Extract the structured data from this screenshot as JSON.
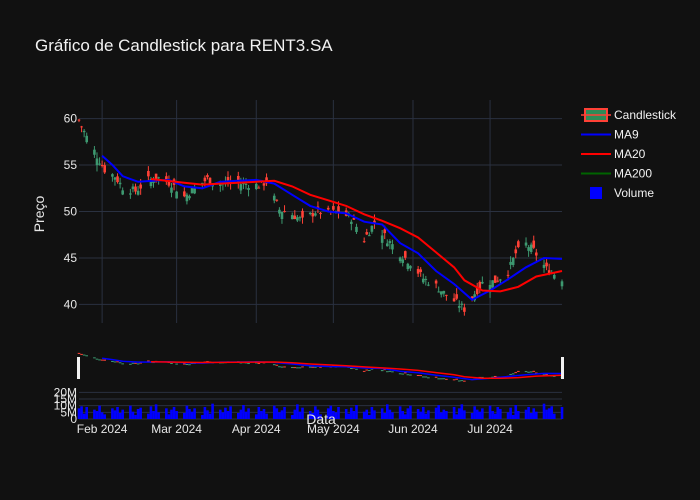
{
  "chart_data": {
    "type": "candlestick",
    "title": "Gráfico de Candlestick para RENT3.SA",
    "xlabel": "Data",
    "ylabel": "Preço",
    "x_ticks": [
      "Feb 2024",
      "Mar 2024",
      "Apr 2024",
      "May 2024",
      "Jun 2024",
      "Jul 2024"
    ],
    "x_tick_dates": [
      "2024-02-01",
      "2024-03-01",
      "2024-04-01",
      "2024-05-01",
      "2024-06-01",
      "2024-07-01"
    ],
    "x_range": [
      "2024-01-23",
      "2024-07-29"
    ],
    "y_ticks": [
      40,
      45,
      50,
      55,
      60
    ],
    "ylim": [
      38,
      62
    ],
    "volume_ticks": [
      "0",
      "5M",
      "10M",
      "15M",
      "20M"
    ],
    "volume_tick_values": [
      0,
      5000000,
      10000000,
      15000000,
      20000000
    ],
    "volume_range": [
      0,
      27000000
    ],
    "legend": {
      "placement": "top-right",
      "items": [
        {
          "label": "Candlestick",
          "kind": "candle",
          "color": "#2e8b57",
          "color2": "#ff4136"
        },
        {
          "label": "MA9",
          "kind": "line",
          "color": "#0000ff"
        },
        {
          "label": "MA20",
          "kind": "line",
          "color": "#ff0000"
        },
        {
          "label": "MA200",
          "kind": "line",
          "color": "#006400"
        },
        {
          "label": "Volume",
          "kind": "square",
          "color": "#0000ff"
        }
      ]
    },
    "colors": {
      "increasing": "#3d9970",
      "decreasing": "#ff4136",
      "ma9": "#0000ff",
      "ma20": "#ff0000",
      "volume": "#0000ff"
    },
    "price_anchor_dates": [
      "2024-01-23",
      "2024-01-26",
      "2024-01-30",
      "2024-02-02",
      "2024-02-06",
      "2024-02-09",
      "2024-02-14",
      "2024-02-19",
      "2024-02-23",
      "2024-02-28",
      "2024-03-04",
      "2024-03-08",
      "2024-03-13",
      "2024-03-18",
      "2024-03-22",
      "2024-03-27",
      "2024-04-02",
      "2024-04-05",
      "2024-04-10",
      "2024-04-15",
      "2024-04-19",
      "2024-04-24",
      "2024-04-29",
      "2024-05-03",
      "2024-05-08",
      "2024-05-13",
      "2024-05-17",
      "2024-05-22",
      "2024-05-27",
      "2024-05-31",
      "2024-06-05",
      "2024-06-10",
      "2024-06-14",
      "2024-06-19",
      "2024-06-21",
      "2024-06-25",
      "2024-06-28",
      "2024-07-03",
      "2024-07-08",
      "2024-07-11",
      "2024-07-15",
      "2024-07-18",
      "2024-07-23",
      "2024-07-29"
    ],
    "price_anchor_values": [
      59.8,
      58.0,
      56.0,
      54.5,
      53.8,
      52.6,
      52.2,
      53.4,
      53.6,
      53.0,
      51.6,
      52.5,
      53.5,
      53.0,
      53.0,
      53.0,
      52.8,
      53.2,
      50.2,
      49.7,
      49.0,
      50.0,
      49.8,
      50.0,
      49.3,
      47.0,
      48.8,
      47.0,
      45.5,
      44.5,
      42.8,
      42.0,
      41.0,
      40.0,
      39.5,
      41.2,
      42.3,
      42.5,
      43.5,
      45.5,
      46.5,
      45.8,
      43.8,
      42.8
    ],
    "ma9_dates": [
      "2024-02-01",
      "2024-02-05",
      "2024-02-09",
      "2024-02-15",
      "2024-02-21",
      "2024-02-27",
      "2024-03-04",
      "2024-03-11",
      "2024-03-18",
      "2024-03-25",
      "2024-04-01",
      "2024-04-08",
      "2024-04-15",
      "2024-04-22",
      "2024-04-29",
      "2024-05-06",
      "2024-05-13",
      "2024-05-20",
      "2024-05-27",
      "2024-06-03",
      "2024-06-10",
      "2024-06-17",
      "2024-06-24",
      "2024-07-01",
      "2024-07-08",
      "2024-07-15",
      "2024-07-22",
      "2024-07-29"
    ],
    "ma9_values": [
      56.0,
      55.0,
      53.8,
      53.2,
      53.3,
      53.4,
      52.7,
      52.5,
      53.2,
      53.3,
      53.4,
      53.0,
      51.8,
      50.6,
      50.0,
      49.8,
      48.9,
      48.6,
      46.6,
      45.5,
      43.6,
      42.2,
      40.5,
      41.5,
      42.7,
      44.0,
      45.0,
      44.9
    ],
    "ma20_dates": [
      "2024-02-20",
      "2024-02-26",
      "2024-03-04",
      "2024-03-11",
      "2024-03-18",
      "2024-03-25",
      "2024-04-01",
      "2024-04-08",
      "2024-04-15",
      "2024-04-22",
      "2024-04-29",
      "2024-05-06",
      "2024-05-13",
      "2024-05-20",
      "2024-05-27",
      "2024-06-03",
      "2024-06-10",
      "2024-06-17",
      "2024-06-21",
      "2024-06-28",
      "2024-07-05",
      "2024-07-12",
      "2024-07-19",
      "2024-07-29"
    ],
    "ma20_values": [
      53.5,
      53.3,
      53.1,
      52.9,
      53.0,
      53.1,
      53.2,
      53.3,
      52.7,
      51.8,
      51.2,
      50.6,
      49.7,
      49.0,
      48.2,
      47.2,
      45.6,
      44.0,
      42.6,
      41.5,
      41.4,
      41.9,
      43.0,
      43.6
    ],
    "volume_values": [
      8000000,
      9500000,
      4000000,
      9000000,
      7000000,
      6000000,
      10000000,
      5000000,
      3500000,
      8000000,
      6500000,
      9000000,
      4500000,
      7000000,
      10000000,
      5500000,
      3000000,
      7500000,
      8500000,
      4000000,
      9500000,
      6000000,
      11000000,
      5000000,
      8000000,
      3500000,
      7000000,
      9000000,
      6000000,
      4500000,
      10000000,
      7500000,
      5500000,
      8000000,
      3000000,
      9000000,
      6500000,
      4000000,
      11500000,
      7000000,
      5000000,
      8500000,
      6000000,
      9500000,
      4500000,
      7000000,
      10500000,
      5500000,
      8000000,
      3500000,
      9000000,
      6000000,
      7500000,
      4000000,
      10000000,
      8000000,
      5000000,
      6500000,
      9000000,
      3000000,
      7000000,
      11000000,
      5500000,
      8500000,
      6000000,
      4500000,
      9500000,
      7000000,
      3500000,
      8000000,
      10000000,
      6000000,
      5000000,
      9000000,
      7500000,
      4000000,
      8500000,
      6000000,
      10500000,
      5500000,
      7000000,
      3000000,
      9000000,
      6500000,
      8000000,
      4500000,
      11000000,
      7000000,
      5000000,
      9500000,
      6000000,
      3500000,
      8000000,
      10000000,
      7500000,
      5500000,
      9000000,
      4000000,
      6500000,
      8500000,
      10500000,
      5000000,
      7000000,
      6000000,
      9000000,
      3500000,
      8000000,
      11000000,
      6500000,
      4500000,
      9500000,
      7000000,
      5500000,
      8000000,
      10000000,
      6000000,
      4000000,
      9000000,
      7500000,
      5000000,
      8500000,
      3000000,
      10500000,
      6000000,
      7000000,
      9000000,
      4500000,
      8000000,
      5500000,
      11500000,
      7000000
    ]
  }
}
